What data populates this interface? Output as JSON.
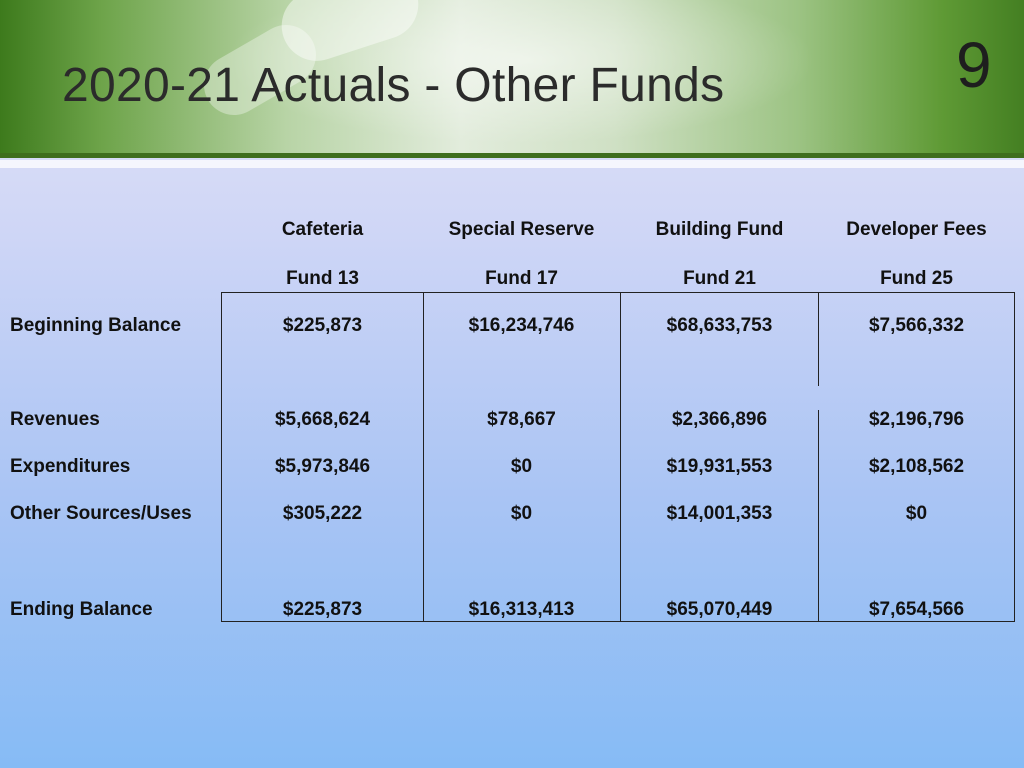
{
  "slide": {
    "title": "2020-21 Actuals - Other Funds",
    "page_number": "9"
  },
  "table": {
    "columns": [
      {
        "name": "Cafeteria",
        "fund": "Fund 13"
      },
      {
        "name": "Special Reserve",
        "fund": "Fund 17"
      },
      {
        "name": "Building Fund",
        "fund": "Fund 21"
      },
      {
        "name": "Developer Fees",
        "fund": "Fund 25"
      }
    ],
    "rows": [
      {
        "label": "Beginning Balance",
        "values": [
          "$225,873",
          "$16,234,746",
          "$68,633,753",
          "$7,566,332"
        ]
      },
      {
        "label": "Revenues",
        "values": [
          "$5,668,624",
          "$78,667",
          "$2,366,896",
          "$2,196,796"
        ]
      },
      {
        "label": "Expenditures",
        "values": [
          "$5,973,846",
          "$0",
          "$19,931,553",
          "$2,108,562"
        ]
      },
      {
        "label": "Other Sources/Uses",
        "values": [
          "$305,222",
          "$0",
          "$14,001,353",
          "$0"
        ]
      },
      {
        "label": "Ending Balance",
        "values": [
          "$225,873",
          "$16,313,413",
          "$65,070,449",
          "$7,654,566"
        ]
      }
    ]
  }
}
